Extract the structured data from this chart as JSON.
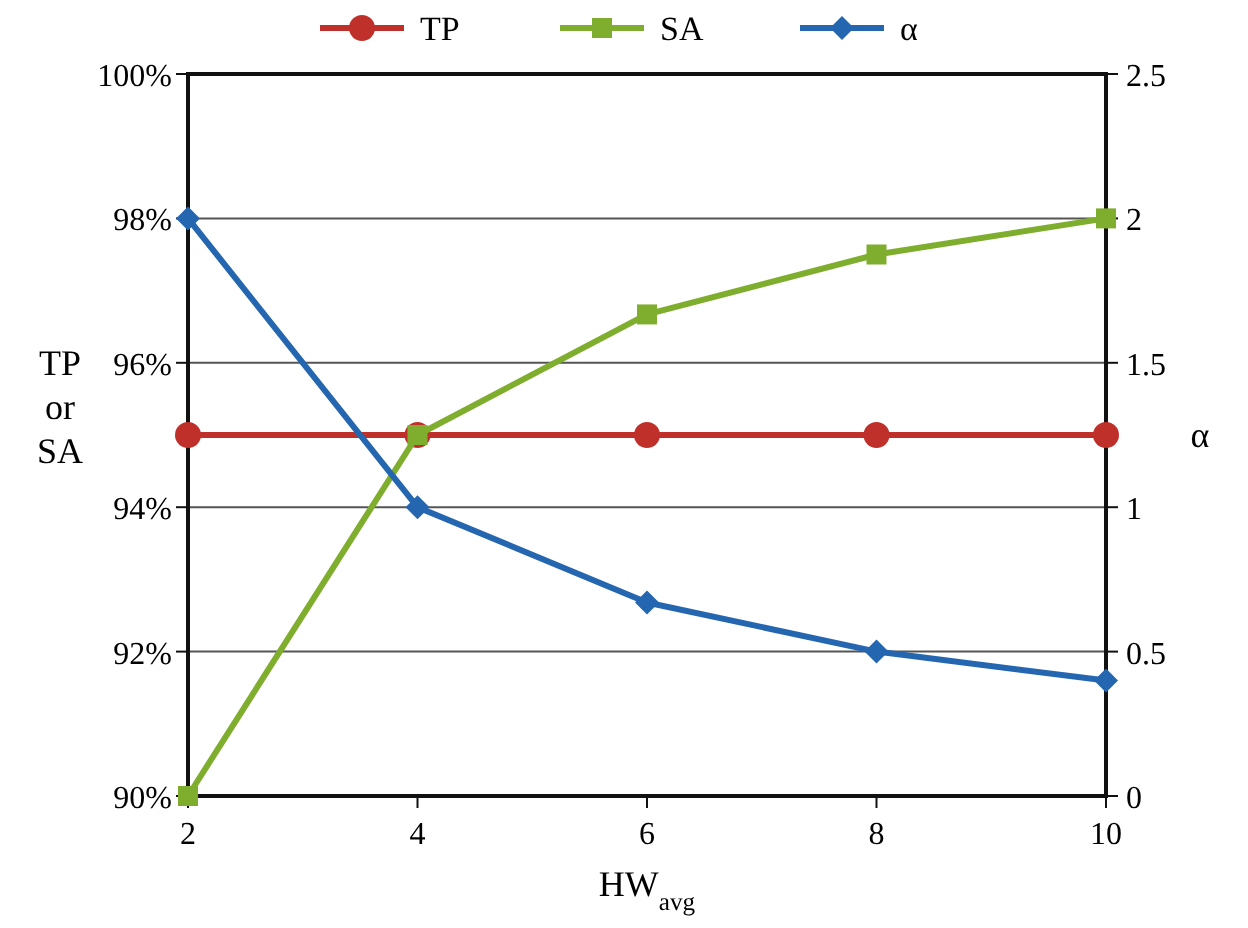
{
  "chart_data": {
    "type": "line",
    "xlabel": "HW$_{avg}$",
    "ylabel": "TP or SA",
    "y2label": "α",
    "x": [
      2,
      4,
      6,
      8,
      10
    ],
    "series": [
      {
        "name": "TP",
        "color": "#c0302b",
        "values": [
          95,
          95,
          95,
          95,
          95
        ],
        "marker": "circle"
      },
      {
        "name": "SA",
        "color": "#7fae2e",
        "values": [
          90,
          95,
          96.67,
          97.5,
          98
        ],
        "marker": "square"
      },
      {
        "name": "α",
        "color": "#2566b0",
        "values": [
          2,
          1,
          0.67,
          0.5,
          0.4
        ],
        "marker": "diamond",
        "axis": "y2"
      }
    ],
    "xlim": [
      2,
      10
    ],
    "xticks": [
      2,
      4,
      6,
      8,
      10
    ],
    "ylim": [
      90,
      100
    ],
    "yticks": [
      {
        "value": 90,
        "label": "90%"
      },
      {
        "value": 92,
        "label": "92%"
      },
      {
        "value": 94,
        "label": "94%"
      },
      {
        "value": 96,
        "label": "96%"
      },
      {
        "value": 98,
        "label": "98%"
      },
      {
        "value": 100,
        "label": "100%"
      }
    ],
    "y2lim": [
      0,
      2.5
    ],
    "y2ticks": [
      0,
      0.5,
      1,
      1.5,
      2,
      2.5
    ],
    "grid": "y",
    "legend": "top",
    "line_style": "solid"
  }
}
